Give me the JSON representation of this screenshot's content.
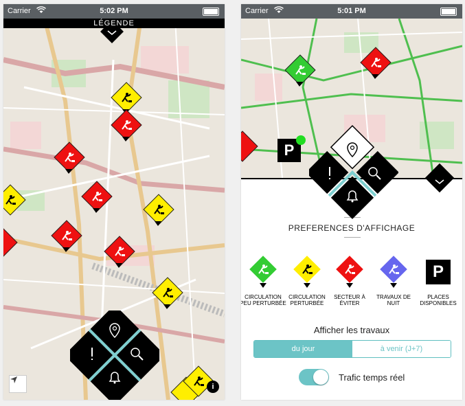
{
  "status_bar": {
    "carrier": "Carrier",
    "time_left": "5:02 PM",
    "time_right": "5:01 PM"
  },
  "map_screen": {
    "legend_button": "LÉGENDE",
    "info_button": "i"
  },
  "preferences_screen": {
    "title": "PREFERENCES D'AFFICHAGE",
    "legend": [
      {
        "label": "CIRCULATION PEU PERTURBÉE",
        "color": "#33cc33",
        "icon": "roadwork-icon"
      },
      {
        "label": "CIRCULATION PERTURBÉE",
        "color": "#ffee00",
        "icon": "roadwork-icon"
      },
      {
        "label": "SECTEUR À ÉVITER",
        "color": "#ee1111",
        "icon": "roadwork-icon"
      },
      {
        "label": "TRAVAUX DE NUIT",
        "color": "#6666ee",
        "icon": "roadwork-icon"
      },
      {
        "label": "PLACES DISPONIBLES",
        "color": "#000000",
        "icon": "parking-icon",
        "glyph": "P"
      }
    ],
    "show_works_label": "Afficher les travaux",
    "segment": {
      "option_today": "du jour",
      "option_upcoming": "à venir (J+7)",
      "selected": "du jour"
    },
    "traffic_label": "Trafic temps réel",
    "traffic_enabled": true,
    "parking_marker": "P"
  },
  "colors": {
    "accent": "#6cc4c6",
    "green": "#33cc33",
    "yellow": "#ffee00",
    "red": "#ee1111",
    "purple": "#6666ee"
  }
}
